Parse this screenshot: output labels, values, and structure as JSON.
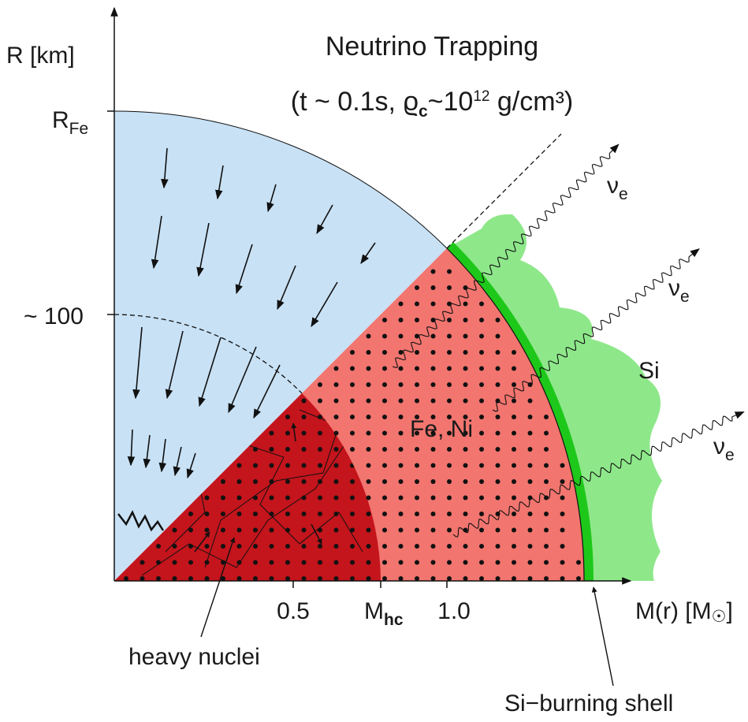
{
  "title": {
    "line1": "Neutrino Trapping",
    "line2_prefix": "(t ~ 0.1s,  ",
    "rho_symbol": "ϱ",
    "rho_sub": "c",
    "rho_eq": "~10",
    "rho_exp": "12",
    "rho_units": " g/cm³)"
  },
  "y_axis": {
    "label": "R [km]",
    "tick_rfe_main": "R",
    "tick_rfe_sub": "Fe",
    "tick_100": "~ 100"
  },
  "x_axis": {
    "label_main": "M(r) [M",
    "label_sun": "☉",
    "label_close": "]",
    "tick_05": "0.5",
    "tick_mhc_main": "M",
    "tick_mhc_sub": "hc",
    "tick_10": "1.0"
  },
  "regions": {
    "fe_ni": "Fe, Ni",
    "si": "Si",
    "heavy_nuclei": "heavy nuclei",
    "si_burning_shell": "Si−burning shell"
  },
  "neutrinos": [
    {
      "symbol": "ν",
      "sub": "e"
    },
    {
      "symbol": "ν",
      "sub": "e"
    },
    {
      "symbol": "ν",
      "sub": "e"
    }
  ],
  "colors": {
    "infall_region": "#c8e1f5",
    "fe_ni_region": "#f2756f",
    "heavy_nuclei_region": "#c4141c",
    "si_region": "#8ee88a",
    "si_burning_shell": "#1ec81a"
  }
}
